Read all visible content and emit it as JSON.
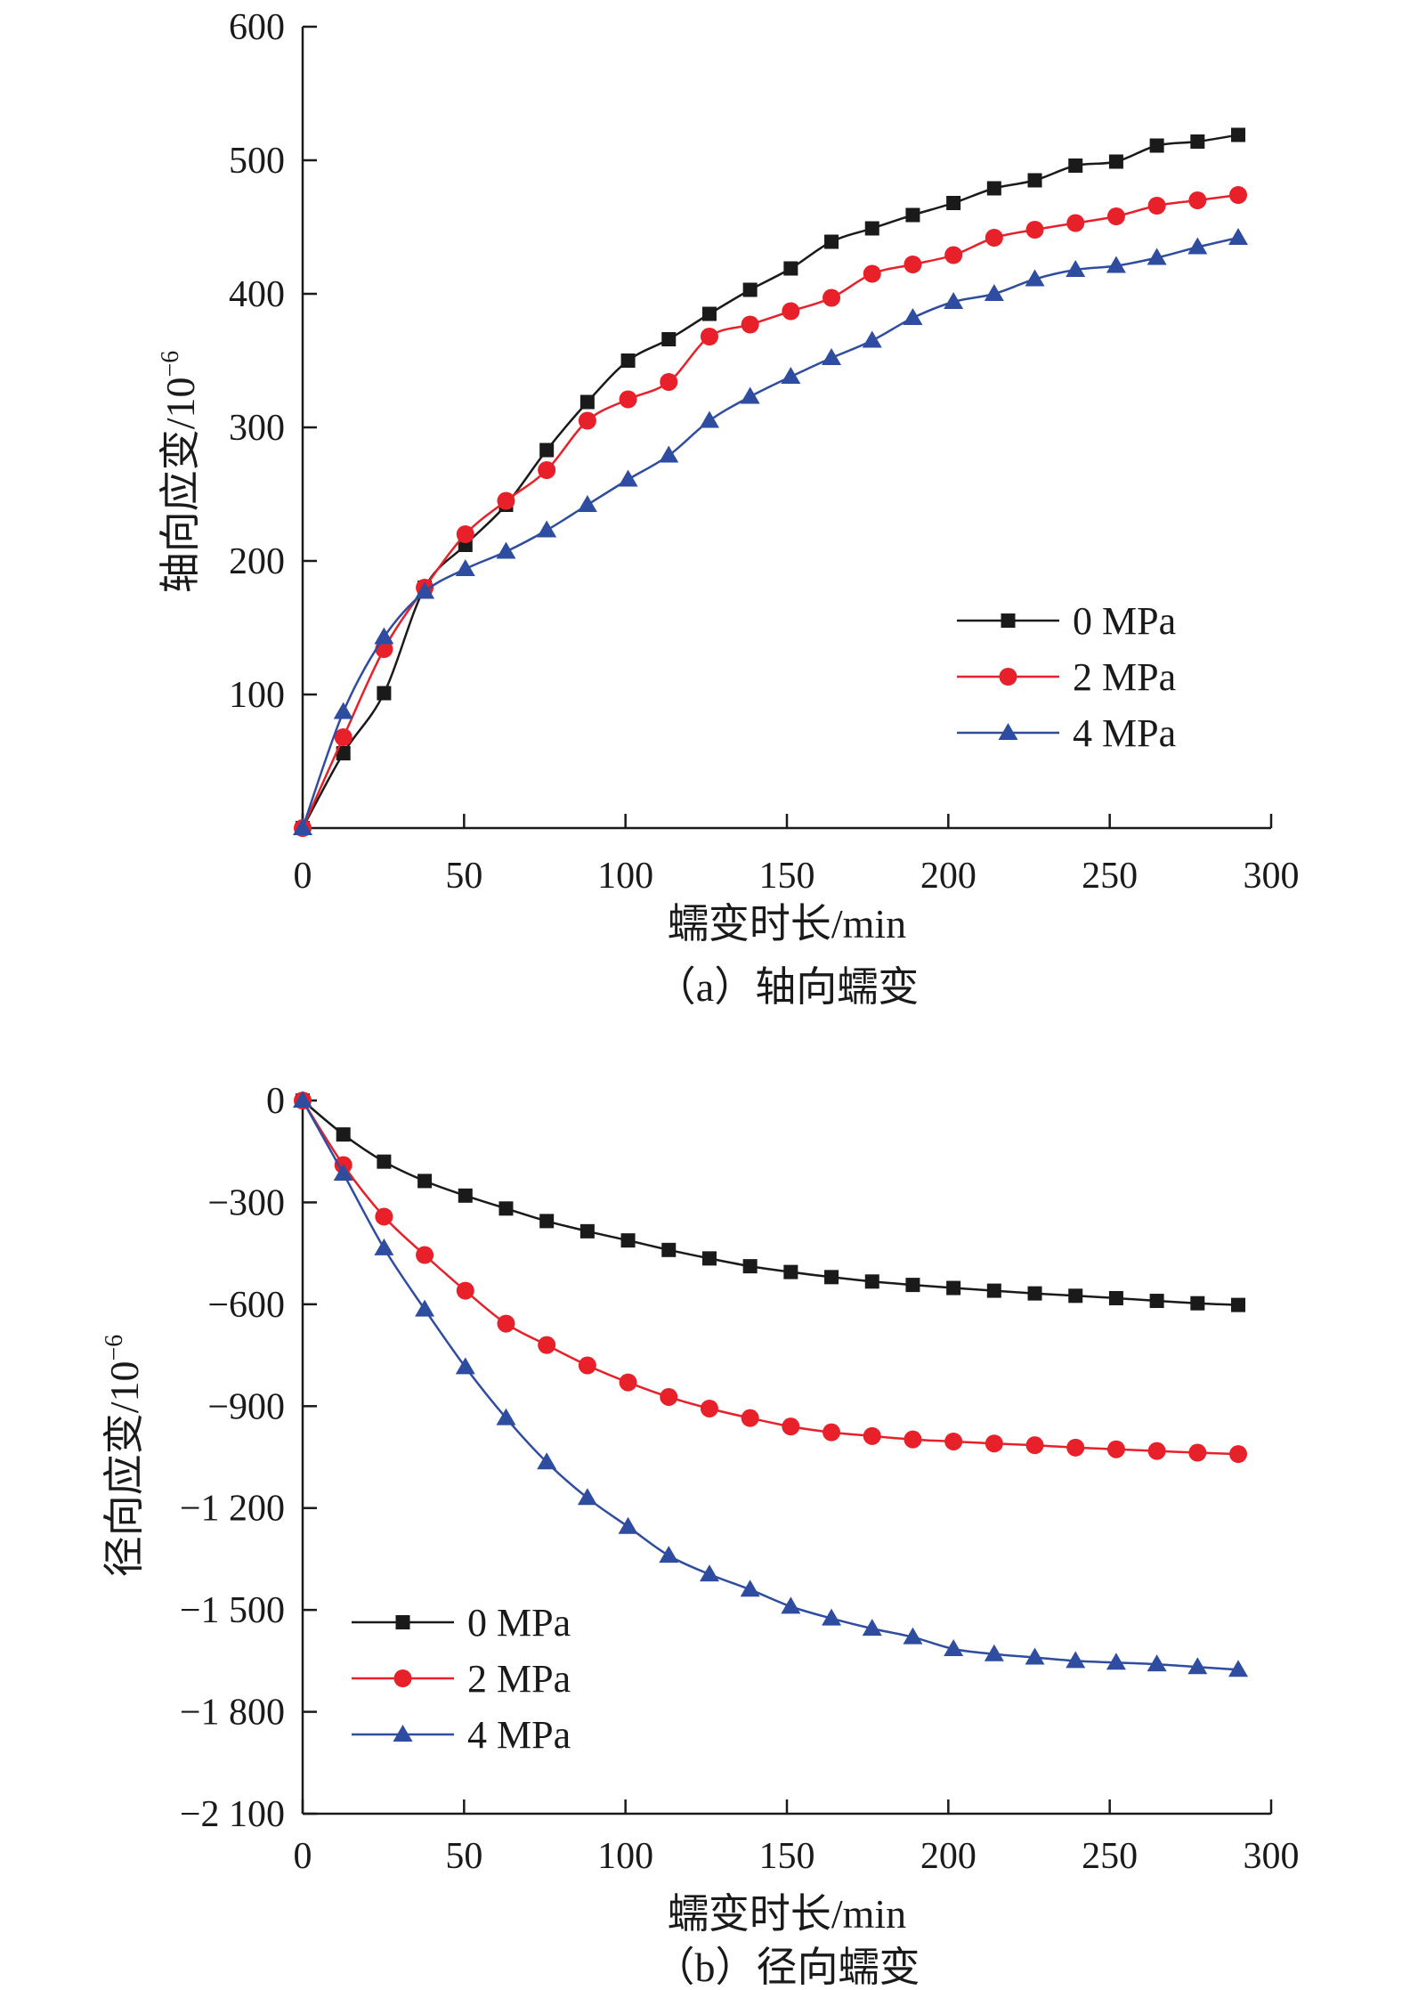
{
  "chart_data": [
    {
      "type": "line",
      "caption": "（a）轴向蠕变",
      "xlabel": "蠕变时长/min",
      "ylabel": "轴向应变/10",
      "ylabel_sup": "−6",
      "xlim": [
        0,
        300
      ],
      "ylim": [
        0,
        600
      ],
      "xticks": [
        0,
        50,
        100,
        150,
        200,
        250,
        300
      ],
      "xtick_labels": [
        "0",
        "50",
        "100",
        "150",
        "200",
        "250",
        "300"
      ],
      "yticks": [
        100,
        200,
        300,
        400,
        500,
        600
      ],
      "ytick_labels": [
        "100",
        "200",
        "300",
        "400",
        "500",
        "600"
      ],
      "grid": false,
      "legend_position": "middle-right",
      "x": [
        0,
        12.6,
        25.2,
        37.8,
        50.4,
        63,
        75.6,
        88.2,
        100.8,
        113.4,
        126,
        138.6,
        151.2,
        163.8,
        176.4,
        189,
        201.6,
        214.2,
        226.8,
        239.4,
        252,
        264.6,
        277.2,
        289.8
      ],
      "series": [
        {
          "name": "0 MPa",
          "color": "#1a1a1a",
          "marker": "square",
          "values": [
            0,
            56,
            101,
            180,
            212,
            242,
            283,
            319,
            350,
            366,
            385,
            403,
            419,
            439,
            449,
            459,
            468,
            479,
            485,
            496,
            499,
            511,
            514,
            519
          ]
        },
        {
          "name": "2 MPa",
          "color": "#e8202a",
          "marker": "circle",
          "values": [
            0,
            68,
            134,
            180,
            220,
            245,
            268,
            305,
            321,
            334,
            368,
            377,
            387,
            397,
            415,
            422,
            429,
            442,
            448,
            453,
            458,
            466,
            470,
            474
          ]
        },
        {
          "name": "4 MPa",
          "color": "#2f4da0",
          "marker": "triangle",
          "values": [
            0,
            87,
            143,
            177,
            194,
            207,
            223,
            242,
            261,
            279,
            305,
            323,
            338,
            352,
            365,
            382,
            394,
            400,
            411,
            418,
            421,
            427,
            435,
            442
          ]
        }
      ]
    },
    {
      "type": "line",
      "caption": "（b）径向蠕变",
      "xlabel": "蠕变时长/min",
      "ylabel": "径向应变/10",
      "ylabel_sup": "−6",
      "xlim": [
        0,
        300
      ],
      "ylim": [
        -2100,
        0
      ],
      "xticks": [
        0,
        50,
        100,
        150,
        200,
        250,
        300
      ],
      "xtick_labels": [
        "0",
        "50",
        "100",
        "150",
        "200",
        "250",
        "300"
      ],
      "yticks": [
        0,
        -300,
        -600,
        -900,
        -1200,
        -1500,
        -1800,
        -2100
      ],
      "ytick_labels": [
        "0",
        "−300",
        "−600",
        "−900",
        "−1 200",
        "−1 500",
        "−1 800",
        "−2 100"
      ],
      "grid": false,
      "legend_position": "bottom-left",
      "x": [
        0,
        12.6,
        25.2,
        37.8,
        50.4,
        63,
        75.6,
        88.2,
        100.8,
        113.4,
        126,
        138.6,
        151.2,
        163.8,
        176.4,
        189,
        201.6,
        214.2,
        226.8,
        239.4,
        252,
        264.6,
        277.2,
        289.8
      ],
      "series": [
        {
          "name": "0 MPa",
          "color": "#1a1a1a",
          "marker": "square",
          "values": [
            0,
            -100,
            -180,
            -237,
            -280,
            -318,
            -355,
            -385,
            -412,
            -440,
            -465,
            -488,
            -505,
            -520,
            -533,
            -543,
            -552,
            -560,
            -568,
            -575,
            -582,
            -590,
            -597,
            -602
          ]
        },
        {
          "name": "2 MPa",
          "color": "#e8202a",
          "marker": "circle",
          "values": [
            0,
            -190,
            -342,
            -455,
            -560,
            -657,
            -720,
            -780,
            -830,
            -873,
            -907,
            -935,
            -960,
            -977,
            -988,
            -998,
            -1004,
            -1010,
            -1015,
            -1022,
            -1027,
            -1032,
            -1037,
            -1041
          ]
        },
        {
          "name": "4 MPa",
          "color": "#2f4da0",
          "marker": "triangle",
          "values": [
            0,
            -215,
            -435,
            -615,
            -785,
            -935,
            -1065,
            -1170,
            -1255,
            -1340,
            -1395,
            -1440,
            -1490,
            -1525,
            -1555,
            -1580,
            -1615,
            -1630,
            -1640,
            -1650,
            -1655,
            -1660,
            -1668,
            -1676
          ]
        }
      ]
    }
  ]
}
